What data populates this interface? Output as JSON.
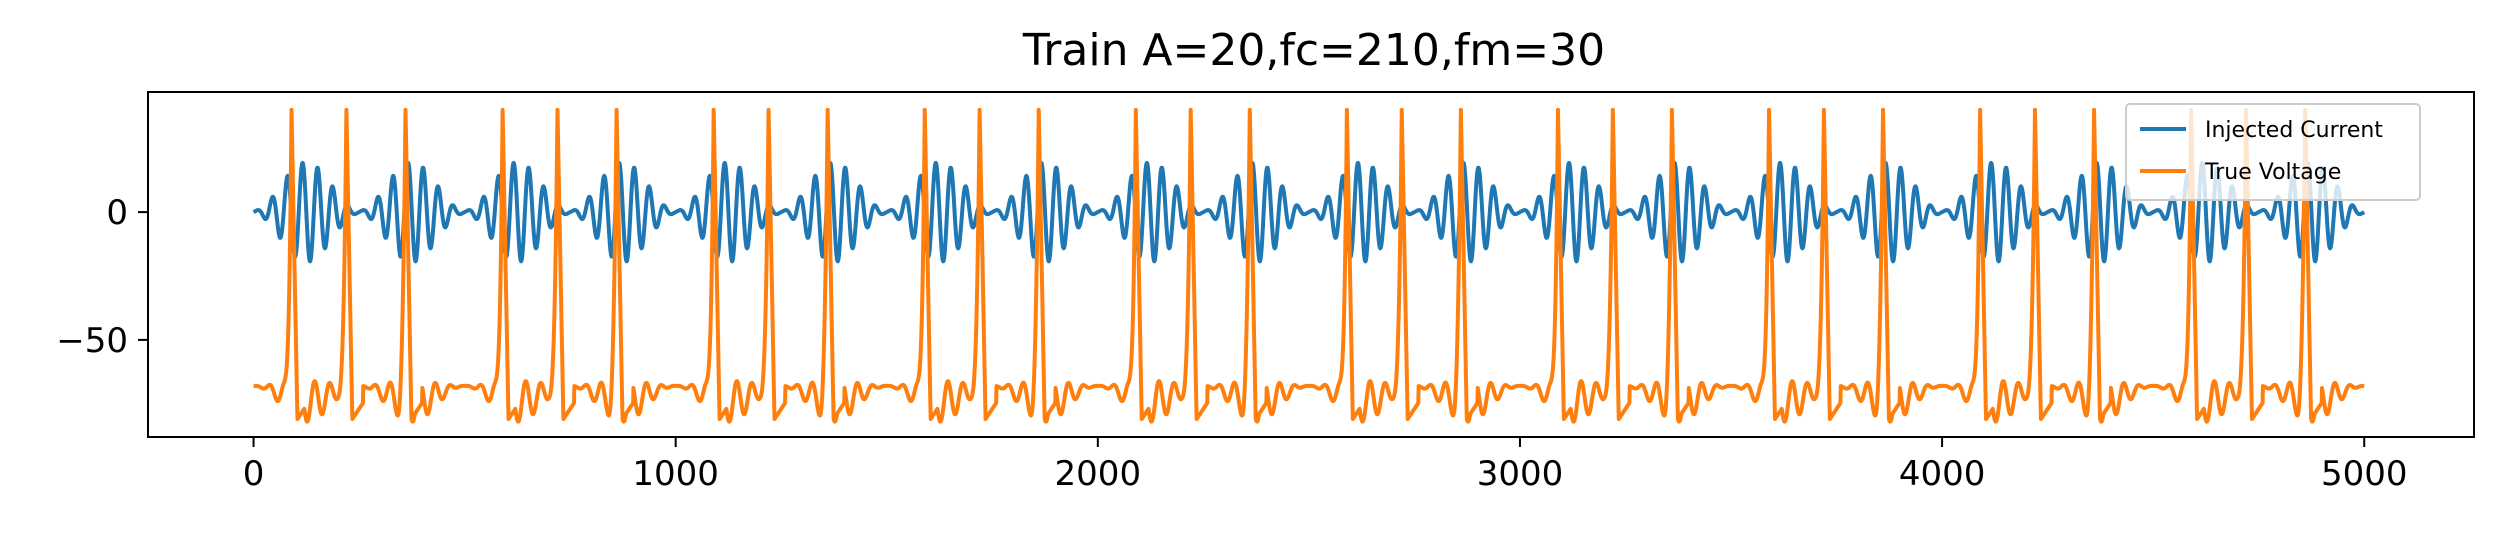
{
  "chart_data": {
    "type": "line",
    "title": "Train A=20,fc=210,fm=30",
    "xlabel": "",
    "ylabel": "",
    "xlim": [
      -250,
      5260
    ],
    "ylim": [
      -88,
      47
    ],
    "x_ticks": [
      0,
      1000,
      2000,
      3000,
      4000,
      5000
    ],
    "x_tick_labels": [
      "0",
      "1000",
      "2000",
      "3000",
      "4000",
      "5000"
    ],
    "y_ticks": [
      0,
      -50
    ],
    "y_tick_labels": [
      "0",
      "−50"
    ],
    "grid": false,
    "legend_position": "top-right",
    "series": [
      {
        "name": "Injected Current",
        "color": "#1f77b4",
        "amplitude": 20,
        "carrier_frequency": 210,
        "modulation_frequency": 30,
        "x_range": [
          0,
          5000
        ]
      },
      {
        "name": "True Voltage",
        "color": "#ff7f0e",
        "resting": -66,
        "spike_peak": 40,
        "trough": -81,
        "spike_times": [
          90,
          220,
          360,
          590,
          720,
          860,
          1090,
          1220,
          1360,
          1590,
          1720,
          1860,
          2090,
          2220,
          2360,
          2590,
          2720,
          2860,
          3090,
          3220,
          3360,
          3590,
          3720,
          3860,
          4090,
          4220,
          4360,
          4590,
          4720,
          4860
        ],
        "x_range": [
          0,
          5000
        ]
      }
    ]
  }
}
